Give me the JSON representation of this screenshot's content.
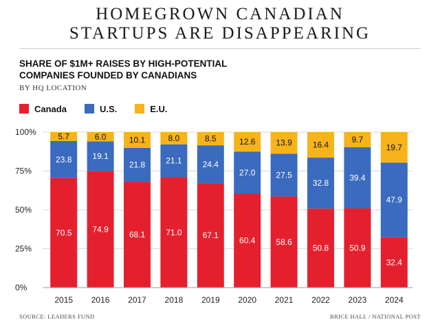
{
  "headline": {
    "line1": "HOMEGROWN CANADIAN",
    "line2": "STARTUPS ARE DISAPPEARING"
  },
  "subtitle": {
    "line1": "SHARE OF $1M+ RAISES BY HIGH-POTENTIAL",
    "line2": "COMPANIES FOUNDED BY CANADIANS"
  },
  "byline": "BY HQ LOCATION",
  "footer": {
    "source": "SOURCE: LEADERS FUND",
    "credit": "BRICE HALL / NATIONAL POST"
  },
  "chart_data": {
    "type": "bar",
    "stacked": true,
    "categories": [
      "2015",
      "2016",
      "2017",
      "2018",
      "2019",
      "2020",
      "2021",
      "2022",
      "2023",
      "2024"
    ],
    "series": [
      {
        "name": "Canada",
        "color": "#e5202e",
        "label_color": "#ffffff",
        "values": [
          70.5,
          74.9,
          68.1,
          71.0,
          67.1,
          60.4,
          58.6,
          50.8,
          50.9,
          32.4
        ]
      },
      {
        "name": "U.S.",
        "color": "#3a6bbf",
        "label_color": "#ffffff",
        "values": [
          23.8,
          19.1,
          21.8,
          21.1,
          24.4,
          27.0,
          27.5,
          32.8,
          39.4,
          47.9
        ]
      },
      {
        "name": "E.U.",
        "color": "#f6b31a",
        "label_color": "#111111",
        "values": [
          5.7,
          6.0,
          10.1,
          8.0,
          8.5,
          12.6,
          13.9,
          16.4,
          9.7,
          19.7
        ]
      }
    ],
    "ylim": [
      0,
      100
    ],
    "yticks": [
      0,
      25,
      50,
      75,
      100
    ],
    "ytick_labels": [
      "0%",
      "25%",
      "50%",
      "75%",
      "100%"
    ],
    "grid": true,
    "legend_position": "top-left"
  }
}
